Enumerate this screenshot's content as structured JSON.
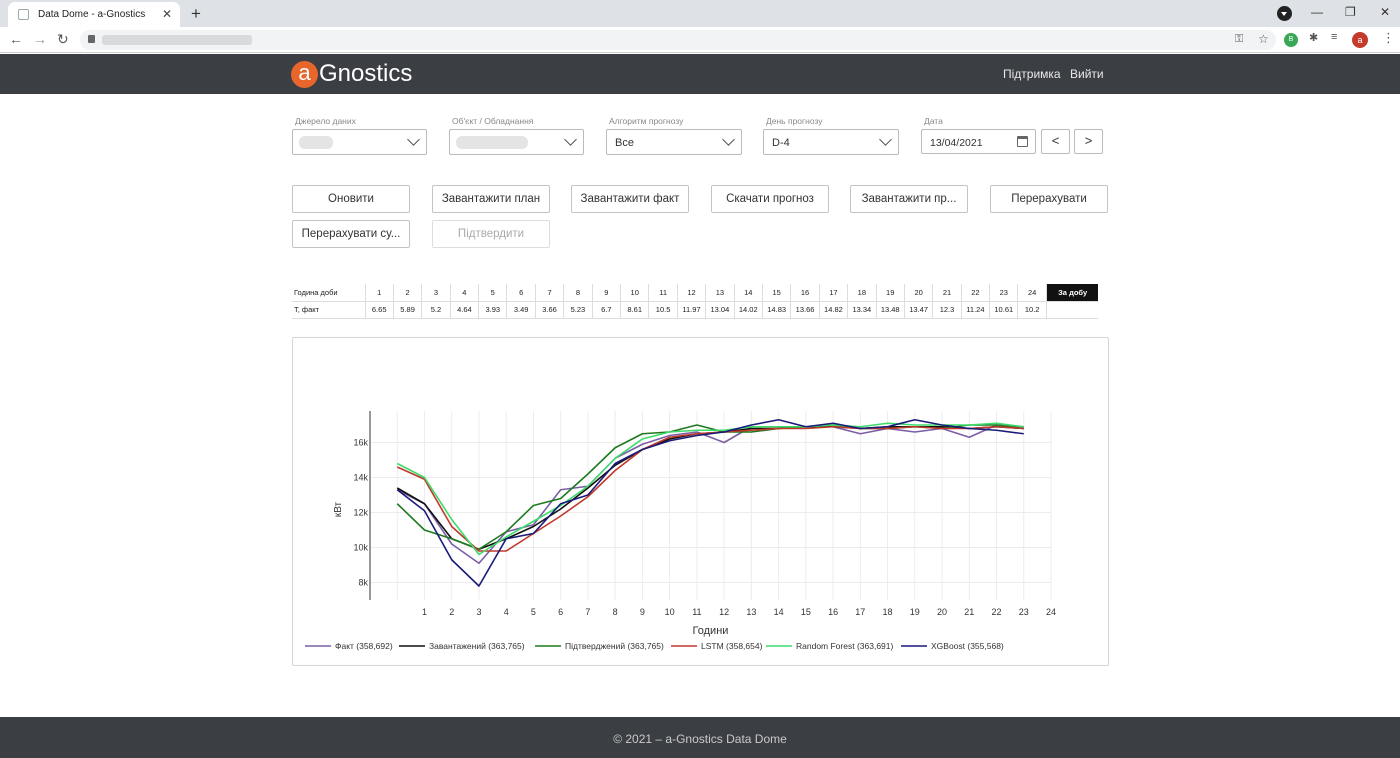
{
  "browser": {
    "tab_title": "Data Dome - a-Gnostics",
    "tab_close": "✕",
    "new_tab": "+",
    "min": "—",
    "restore": "❐",
    "close": "✕",
    "back": "←",
    "forward": "→",
    "reload": "↻",
    "key_icon": "⚿",
    "star_icon": "☆",
    "puzzle_icon": "✱",
    "media_icon": "≡",
    "menu_icon": "⋮",
    "avatar_letter": "a",
    "ext_label": "B"
  },
  "header": {
    "logo_letter": "a",
    "logo_text": "Gnostics",
    "support": "Підтримка",
    "logout": "Вийти"
  },
  "filters": {
    "source": {
      "label": "Джерело даних",
      "value": ""
    },
    "object": {
      "label": "Об'єкт / Обладнання",
      "value": ""
    },
    "algorithm": {
      "label": "Алгоритм прогнозу",
      "value": "Все"
    },
    "forecast_day": {
      "label": "День прогнозу",
      "value": "D-4"
    },
    "date": {
      "label": "Дата",
      "value": "13/04/2021"
    },
    "prev": "<",
    "next": ">"
  },
  "actions": {
    "refresh": "Оновити",
    "load_plan": "Завантажити план",
    "load_fact": "Завантажити факт",
    "download_forecast": "Скачати прогноз",
    "load_pr": "Завантажити пр...",
    "recalc": "Перерахувати",
    "recalc_su": "Перерахувати су...",
    "confirm": "Підтвердити"
  },
  "hours_table": {
    "header_label": "Година доби",
    "hours": [
      "1",
      "2",
      "3",
      "4",
      "5",
      "6",
      "7",
      "8",
      "9",
      "10",
      "11",
      "12",
      "13",
      "14",
      "15",
      "16",
      "17",
      "18",
      "19",
      "20",
      "21",
      "22",
      "23",
      "24"
    ],
    "day_label": "За добу",
    "row_label": "Т, факт",
    "values": [
      "6.65",
      "5.89",
      "5.2",
      "4.64",
      "3.93",
      "3.49",
      "3.66",
      "5.23",
      "6.7",
      "8.61",
      "10.5",
      "11.97",
      "13.04",
      "14.02",
      "14.83",
      "13.66",
      "14.82",
      "13.34",
      "13.48",
      "13.47",
      "12.3",
      "11.24",
      "10.61",
      "10.2"
    ]
  },
  "chart_data": {
    "type": "line",
    "xlabel": "Години",
    "ylabel": "кВт",
    "x": [
      0,
      1,
      2,
      3,
      4,
      5,
      6,
      7,
      8,
      9,
      10,
      11,
      12,
      13,
      14,
      15,
      16,
      17,
      18,
      19,
      20,
      21,
      22,
      23
    ],
    "xticks": [
      "1",
      "2",
      "3",
      "4",
      "5",
      "6",
      "7",
      "8",
      "9",
      "10",
      "11",
      "12",
      "13",
      "14",
      "15",
      "16",
      "17",
      "18",
      "19",
      "20",
      "21",
      "22",
      "23",
      "24"
    ],
    "yticks": [
      8000,
      10000,
      12000,
      14000,
      16000
    ],
    "ytick_labels": [
      "8k",
      "10k",
      "12k",
      "14k",
      "16k"
    ],
    "ylim": [
      7000,
      17800
    ],
    "xlim": [
      -1,
      24
    ],
    "grid": true,
    "legend_position": "bottom-left",
    "series": [
      {
        "name": "Факт (358,692)",
        "color": "#7b5ea7",
        "values": [
          13300,
          12500,
          10200,
          9100,
          10900,
          11300,
          13300,
          13500,
          15100,
          15900,
          16400,
          16600,
          16000,
          16900,
          16900,
          16900,
          16900,
          16500,
          16800,
          16600,
          16800,
          16300,
          17000,
          16900
        ]
      },
      {
        "name": "Завантажений (363,765)",
        "color": "#111111",
        "values": [
          13400,
          12500,
          10500,
          9900,
          10500,
          11200,
          12200,
          13400,
          14700,
          15600,
          16200,
          16500,
          16600,
          16800,
          16800,
          16900,
          16900,
          16800,
          16900,
          16900,
          16900,
          16800,
          16900,
          16800
        ]
      },
      {
        "name": "Підтверджений (363,765)",
        "color": "#1f7a1f",
        "values": [
          12500,
          11000,
          10500,
          9900,
          10900,
          12400,
          12800,
          14200,
          15700,
          16500,
          16600,
          17000,
          16600,
          16600,
          16800,
          16900,
          17000,
          16800,
          16800,
          16900,
          16800,
          17000,
          17000,
          16800
        ]
      },
      {
        "name": "LSTM (358,654)",
        "color": "#c0392b",
        "values": [
          14600,
          13900,
          11200,
          9800,
          9800,
          10800,
          11800,
          12900,
          14400,
          15600,
          16300,
          16500,
          16600,
          16700,
          16800,
          16800,
          16900,
          16800,
          16800,
          16900,
          16800,
          16800,
          16900,
          16800
        ]
      },
      {
        "name": "Random Forest (363,691)",
        "color": "#3ddc6a",
        "values": [
          14800,
          14000,
          11600,
          9600,
          10600,
          11500,
          12400,
          13500,
          15100,
          16200,
          16600,
          16700,
          16700,
          16900,
          16900,
          16900,
          17000,
          16900,
          17100,
          17000,
          17000,
          17000,
          17100,
          16900
        ]
      },
      {
        "name": "XGBoost (355,568)",
        "color": "#1a1a7a",
        "values": [
          13300,
          12100,
          9300,
          7800,
          10500,
          10800,
          12500,
          13000,
          14800,
          15600,
          16100,
          16400,
          16600,
          17000,
          17300,
          16900,
          17100,
          16800,
          16900,
          17300,
          17000,
          16800,
          16700,
          16500
        ]
      }
    ]
  },
  "footer": {
    "text": "© 2021 – a-Gnostics Data Dome"
  }
}
